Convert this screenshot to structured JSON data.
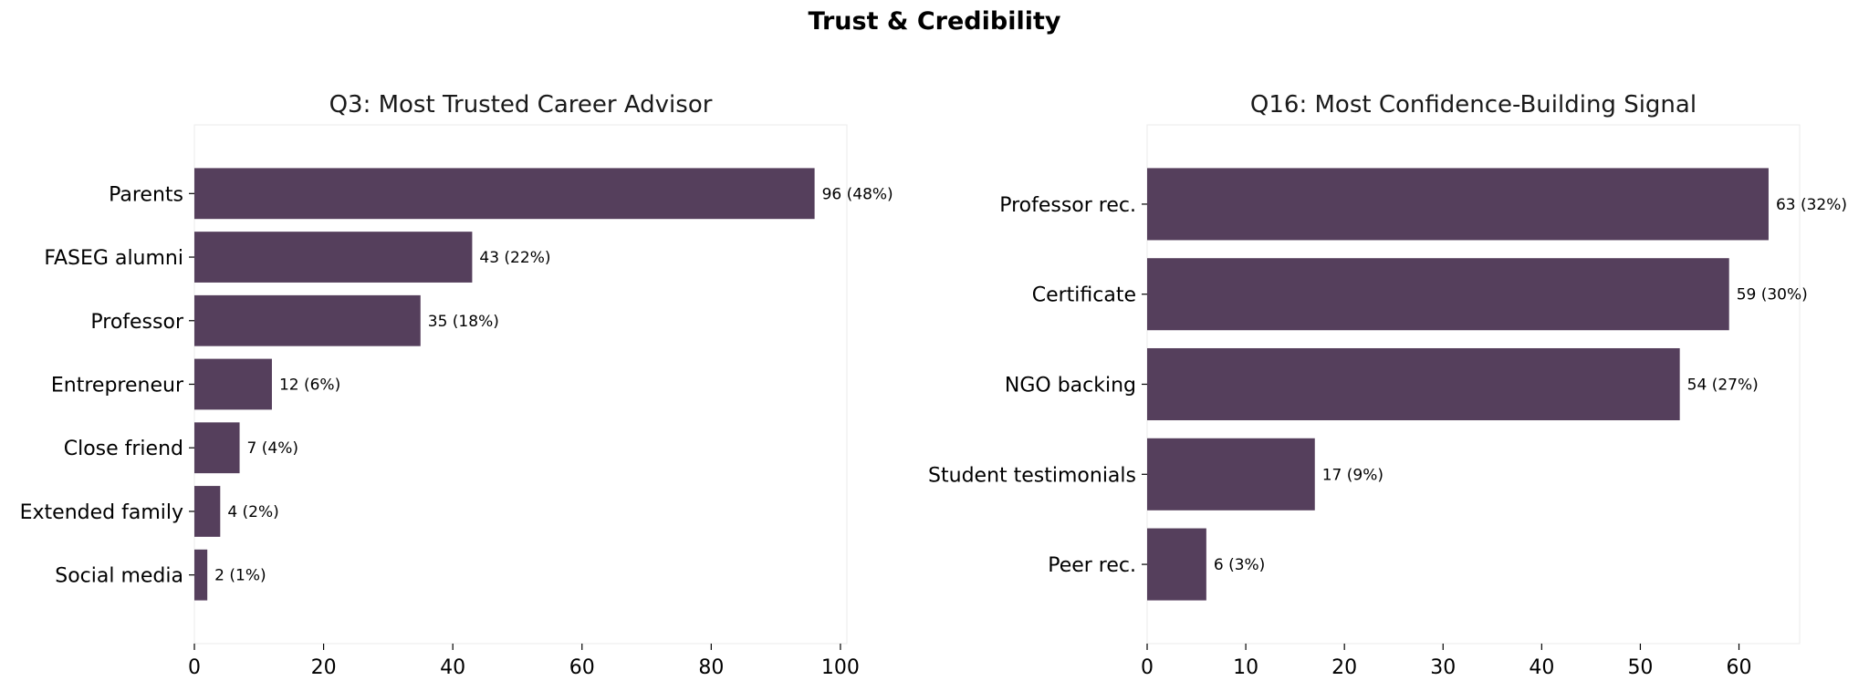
{
  "figure": {
    "title": "Trust & Credibility"
  },
  "chart_data": [
    {
      "type": "bar",
      "orientation": "horizontal",
      "title": "Q3: Most Trusted Career Advisor",
      "xlabel": "",
      "ylabel": "",
      "xlim": [
        0,
        101
      ],
      "xticks": [
        0,
        20,
        40,
        60,
        80,
        100
      ],
      "categories": [
        "Parents",
        "FASEG alumni",
        "Professor",
        "Entrepreneur",
        "Close friend",
        "Extended family",
        "Social media"
      ],
      "values": [
        96,
        43,
        35,
        12,
        7,
        4,
        2
      ],
      "data_labels": [
        "96 (48%)",
        "43 (22%)",
        "35 (18%)",
        "12 (6%)",
        "7 (4%)",
        "4 (2%)",
        "2 (1%)"
      ],
      "color": "#553F5C",
      "grid": false
    },
    {
      "type": "bar",
      "orientation": "horizontal",
      "title": "Q16: Most Confidence-Building Signal",
      "xlabel": "",
      "ylabel": "",
      "xlim": [
        0,
        66.15
      ],
      "xticks": [
        0,
        10,
        20,
        30,
        40,
        50,
        60
      ],
      "categories": [
        "Professor rec.",
        "Certificate",
        "NGO backing",
        "Student testimonials",
        "Peer rec."
      ],
      "values": [
        63,
        59,
        54,
        17,
        6
      ],
      "data_labels": [
        "63 (32%)",
        "59 (30%)",
        "54 (27%)",
        "17 (9%)",
        "6 (3%)"
      ],
      "color": "#553F5C",
      "grid": false
    }
  ]
}
